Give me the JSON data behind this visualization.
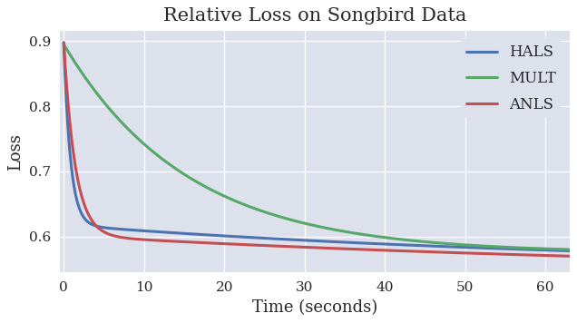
{
  "title": "Relative Loss on Songbird Data",
  "xlabel": "Time (seconds)",
  "ylabel": "Loss",
  "xlim": [
    -0.5,
    63
  ],
  "ylim": [
    0.545,
    0.915
  ],
  "yticks": [
    0.6,
    0.7,
    0.8,
    0.9
  ],
  "xticks": [
    0,
    10,
    20,
    30,
    40,
    50,
    60
  ],
  "hals_color": "#4c72b0",
  "mult_color": "#55a868",
  "anls_color": "#c44e52",
  "background_color": "#dde1ec",
  "fig_background": "#ffffff",
  "linewidth": 2.2,
  "title_fontsize": 15,
  "label_fontsize": 13,
  "tick_fontsize": 11,
  "legend_fontsize": 12
}
